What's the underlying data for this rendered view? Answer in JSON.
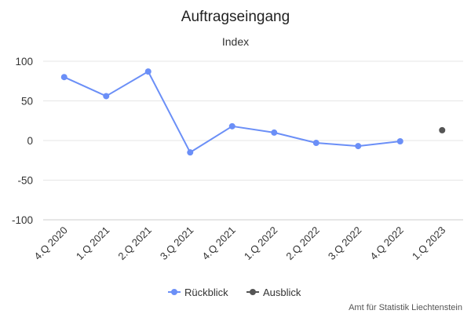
{
  "chart_data": {
    "type": "line",
    "title": "Auftragseingang",
    "subtitle": "Index",
    "categories": [
      "4.Q 2020",
      "1.Q 2021",
      "2.Q 2021",
      "3.Q 2021",
      "4.Q 2021",
      "1.Q 2022",
      "2.Q 2022",
      "3.Q 2022",
      "4.Q 2022",
      "1.Q 2023"
    ],
    "y_ticks": [
      "100",
      "50",
      "0",
      "-50",
      "-100"
    ],
    "ylim": [
      -100,
      100
    ],
    "grid": true,
    "legend_position": "bottom-center",
    "series": [
      {
        "name": "Rückblick",
        "color": "#6b8ff7",
        "values": [
          80,
          56,
          87,
          -15,
          18,
          10,
          -3,
          -7,
          -1,
          null
        ]
      },
      {
        "name": "Ausblick",
        "color": "#555555",
        "values": [
          null,
          null,
          null,
          null,
          null,
          null,
          null,
          null,
          null,
          13
        ]
      }
    ],
    "credit": "Amt für Statistik Liechtenstein"
  }
}
